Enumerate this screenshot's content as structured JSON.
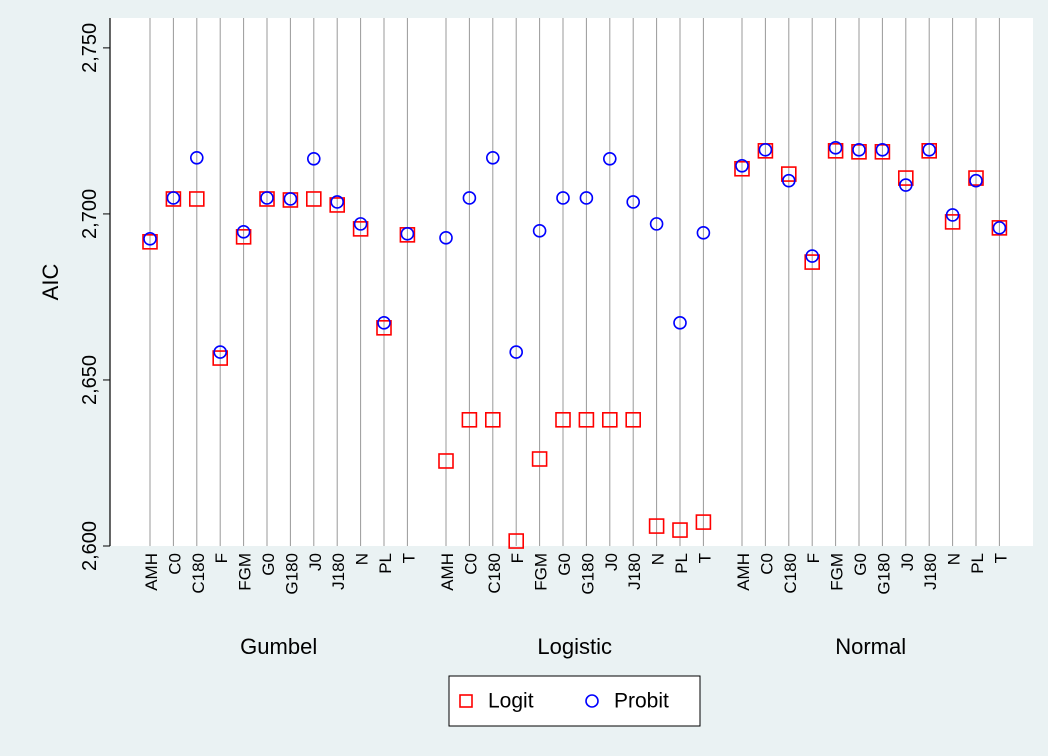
{
  "chart_data": {
    "type": "scatter",
    "y_label": "AIC",
    "groups": [
      "Gumbel",
      "Logistic",
      "Normal"
    ],
    "categories": [
      "AMH",
      "C0",
      "C180",
      "F",
      "FGM",
      "G0",
      "G180",
      "J0",
      "J180",
      "N",
      "PL",
      "T",
      "AMH",
      "C0",
      "C180",
      "F",
      "FGM",
      "G0",
      "G180",
      "J0",
      "J180",
      "N",
      "PL",
      "T",
      "AMH",
      "C0",
      "C180",
      "F",
      "FGM",
      "G0",
      "G180",
      "J0",
      "J180",
      "N",
      "PL",
      "T"
    ],
    "series": [
      {
        "name": "Logit",
        "color": "#ff0000",
        "marker": "square",
        "values": [
          2691.6,
          2704.5,
          2704.5,
          2656.6,
          2693.1,
          2704.5,
          2704.2,
          2704.5,
          2702.7,
          2695.5,
          2665.7,
          2693.7,
          2625.6,
          2638,
          2638,
          2601.5,
          2626.2,
          2638,
          2638,
          2638,
          2638,
          2606,
          2604.8,
          2607.2,
          2713.6,
          2719,
          2712,
          2685.5,
          2719,
          2718.7,
          2718.7,
          2710.8,
          2719,
          2697.6,
          2710.8,
          2695.8
        ]
      },
      {
        "name": "Probit",
        "color": "#0000ff",
        "marker": "circle",
        "values": [
          2692.5,
          2704.8,
          2716.9,
          2658.4,
          2694.6,
          2704.8,
          2704.5,
          2716.6,
          2703.6,
          2697,
          2667.2,
          2694,
          2692.8,
          2704.8,
          2716.9,
          2658.4,
          2694.9,
          2704.8,
          2704.8,
          2716.6,
          2703.6,
          2697,
          2667.2,
          2694.3,
          2714.5,
          2719.3,
          2710,
          2687.3,
          2719.9,
          2719.3,
          2719.3,
          2708.7,
          2719.3,
          2699.7,
          2710,
          2695.8
        ]
      }
    ],
    "ylim": [
      2600,
      2759
    ],
    "yticks": [
      {
        "value": 2600,
        "label": "2,600"
      },
      {
        "value": 2650,
        "label": "2,650"
      },
      {
        "value": 2700,
        "label": "2,700"
      },
      {
        "value": 2750,
        "label": "2,750"
      }
    ],
    "legend": "bottom"
  }
}
